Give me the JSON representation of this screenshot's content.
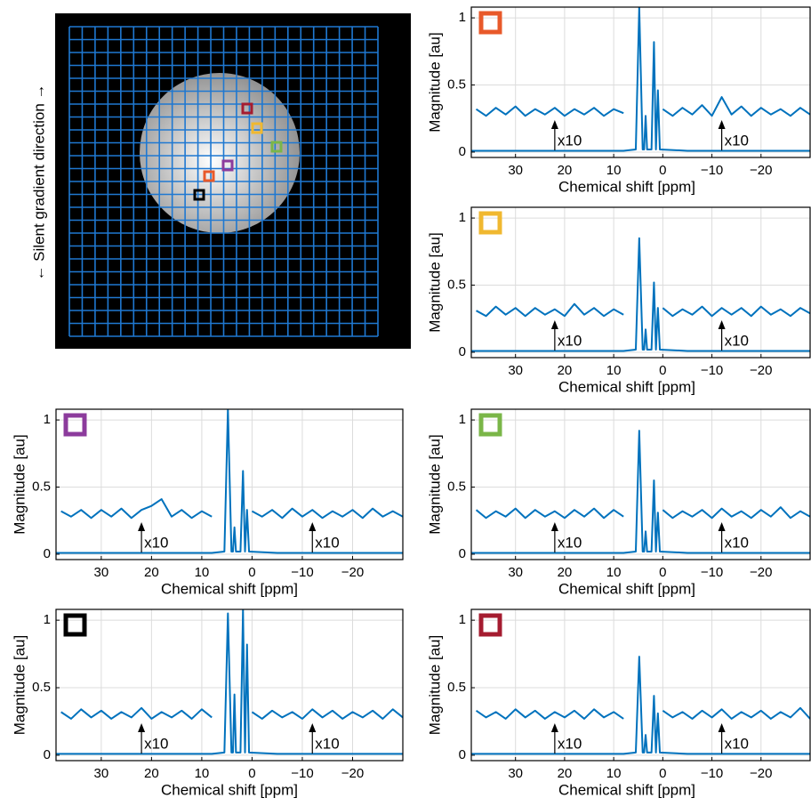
{
  "image": {
    "axis_label": "← Silent gradient direction →"
  },
  "chart_data": [
    {
      "type": "line",
      "xlabel": "Chemical shift [ppm]",
      "ylabel": "Magnitude [au]",
      "marker_color": "#e8592a",
      "xlim": [
        39,
        -30
      ],
      "ylim": [
        -0.04,
        1.08
      ],
      "xticks": [
        30,
        20,
        10,
        0,
        {
          "value": -10,
          "label": "−10"
        },
        {
          "value": -20,
          "label": "−20"
        }
      ],
      "yticks": [
        0,
        0.5,
        1
      ],
      "grid": true,
      "series": [
        {
          "color": "#0072bd",
          "x": [
            39,
            8,
            5.5,
            4.8,
            4.1,
            3.8,
            3.5,
            3.2,
            2.3,
            1.8,
            1.4,
            1.0,
            0.6,
            -5,
            -30
          ],
          "values": [
            0.01,
            0.01,
            0.02,
            1.08,
            0.02,
            0.02,
            0.27,
            0.02,
            0.02,
            0.82,
            0.02,
            0.46,
            0.02,
            0.01,
            0.01
          ]
        },
        {
          "color": "#0072bd",
          "x": [
            38,
            36,
            34,
            32,
            30,
            28,
            26,
            24,
            22,
            20,
            18,
            16,
            14,
            12,
            10,
            8,
            4,
            0,
            -2,
            -4,
            -6,
            -8,
            -10,
            -12,
            -14,
            -16,
            -18,
            -20,
            -22,
            -24,
            -26,
            -28,
            -30
          ],
          "values": [
            0.32,
            0.27,
            0.33,
            0.28,
            0.34,
            0.27,
            0.32,
            0.28,
            0.33,
            0.27,
            0.32,
            0.28,
            0.33,
            0.27,
            0.32,
            0.29,
            null,
            0.32,
            0.27,
            0.33,
            0.28,
            0.35,
            0.27,
            0.41,
            0.28,
            0.34,
            0.27,
            0.33,
            0.28,
            0.32,
            0.27,
            0.33,
            0.28
          ]
        }
      ],
      "annotations": [
        {
          "text": "x10",
          "x": 22
        },
        {
          "text": "x10",
          "x": -12
        }
      ]
    },
    {
      "type": "line",
      "xlabel": "Chemical shift [ppm]",
      "ylabel": "Magnitude [au]",
      "marker_color": "#f0b830",
      "xlim": [
        39,
        -30
      ],
      "ylim": [
        -0.04,
        1.08
      ],
      "xticks": [
        30,
        20,
        10,
        0,
        {
          "value": -10,
          "label": "−10"
        },
        {
          "value": -20,
          "label": "−20"
        }
      ],
      "yticks": [
        0,
        0.5,
        1
      ],
      "grid": true,
      "series": [
        {
          "color": "#0072bd",
          "x": [
            39,
            8,
            5.5,
            4.8,
            4.1,
            3.8,
            3.5,
            3.2,
            2.3,
            1.8,
            1.4,
            1.0,
            0.6,
            -5,
            -30
          ],
          "values": [
            0.01,
            0.01,
            0.02,
            0.85,
            0.02,
            0.02,
            0.17,
            0.02,
            0.02,
            0.52,
            0.02,
            0.33,
            0.02,
            0.01,
            0.01
          ]
        },
        {
          "color": "#0072bd",
          "x": [
            38,
            36,
            34,
            32,
            30,
            28,
            26,
            24,
            22,
            20,
            18,
            16,
            14,
            12,
            10,
            8,
            4,
            0,
            -2,
            -4,
            -6,
            -8,
            -10,
            -12,
            -14,
            -16,
            -18,
            -20,
            -22,
            -24,
            -26,
            -28,
            -30
          ],
          "values": [
            0.31,
            0.27,
            0.34,
            0.28,
            0.33,
            0.27,
            0.33,
            0.28,
            0.32,
            0.27,
            0.36,
            0.28,
            0.33,
            0.27,
            0.32,
            0.28,
            null,
            0.33,
            0.27,
            0.32,
            0.28,
            0.34,
            0.27,
            0.33,
            0.28,
            0.33,
            0.27,
            0.34,
            0.28,
            0.32,
            0.27,
            0.33,
            0.29
          ]
        }
      ],
      "annotations": [
        {
          "text": "x10",
          "x": 22
        },
        {
          "text": "x10",
          "x": -12
        }
      ]
    },
    {
      "type": "line",
      "xlabel": "Chemical shift [ppm]",
      "ylabel": "Magnitude [au]",
      "marker_color": "#8c3b9c",
      "xlim": [
        39,
        -30
      ],
      "ylim": [
        -0.04,
        1.08
      ],
      "xticks": [
        30,
        20,
        10,
        0,
        {
          "value": -10,
          "label": "−10"
        },
        {
          "value": -20,
          "label": "−20"
        }
      ],
      "yticks": [
        0,
        0.5,
        1
      ],
      "grid": true,
      "series": [
        {
          "color": "#0072bd",
          "x": [
            39,
            8,
            5.5,
            4.8,
            4.1,
            3.8,
            3.5,
            3.2,
            2.3,
            1.8,
            1.4,
            1.0,
            0.6,
            -5,
            -30
          ],
          "values": [
            0.01,
            0.01,
            0.02,
            1.08,
            0.02,
            0.02,
            0.2,
            0.02,
            0.02,
            0.62,
            0.02,
            0.33,
            0.02,
            0.01,
            0.01
          ]
        },
        {
          "color": "#0072bd",
          "x": [
            38,
            36,
            34,
            32,
            30,
            28,
            26,
            24,
            22,
            20,
            18,
            16,
            14,
            12,
            10,
            8,
            4,
            0,
            -2,
            -4,
            -6,
            -8,
            -10,
            -12,
            -14,
            -16,
            -18,
            -20,
            -22,
            -24,
            -26,
            -28,
            -30
          ],
          "values": [
            0.32,
            0.28,
            0.33,
            0.27,
            0.33,
            0.28,
            0.34,
            0.27,
            0.33,
            0.36,
            0.41,
            0.28,
            0.33,
            0.27,
            0.32,
            0.28,
            null,
            0.32,
            0.28,
            0.33,
            0.27,
            0.34,
            0.28,
            0.33,
            0.27,
            0.32,
            0.28,
            0.33,
            0.27,
            0.34,
            0.28,
            0.32,
            0.28
          ]
        }
      ],
      "annotations": [
        {
          "text": "x10",
          "x": 22
        },
        {
          "text": "x10",
          "x": -12
        }
      ]
    },
    {
      "type": "line",
      "xlabel": "Chemical shift [ppm]",
      "ylabel": "Magnitude [au]",
      "marker_color": "#7ab648",
      "xlim": [
        39,
        -30
      ],
      "ylim": [
        -0.04,
        1.08
      ],
      "xticks": [
        30,
        20,
        10,
        0,
        {
          "value": -10,
          "label": "−10"
        },
        {
          "value": -20,
          "label": "−20"
        }
      ],
      "yticks": [
        0,
        0.5,
        1
      ],
      "grid": true,
      "series": [
        {
          "color": "#0072bd",
          "x": [
            39,
            8,
            5.5,
            4.8,
            4.1,
            3.8,
            3.5,
            3.2,
            2.3,
            1.8,
            1.4,
            1.0,
            0.6,
            -5,
            -30
          ],
          "values": [
            0.01,
            0.01,
            0.02,
            0.92,
            0.02,
            0.02,
            0.17,
            0.02,
            0.02,
            0.55,
            0.02,
            0.31,
            0.02,
            0.01,
            0.01
          ]
        },
        {
          "color": "#0072bd",
          "x": [
            38,
            36,
            34,
            32,
            30,
            28,
            26,
            24,
            22,
            20,
            18,
            16,
            14,
            12,
            10,
            8,
            4,
            0,
            -2,
            -4,
            -6,
            -8,
            -10,
            -12,
            -14,
            -16,
            -18,
            -20,
            -22,
            -24,
            -26,
            -28,
            -30
          ],
          "values": [
            0.33,
            0.27,
            0.32,
            0.28,
            0.34,
            0.27,
            0.33,
            0.28,
            0.32,
            0.27,
            0.33,
            0.28,
            0.34,
            0.27,
            0.33,
            0.28,
            null,
            0.33,
            0.27,
            0.32,
            0.28,
            0.33,
            0.27,
            0.34,
            0.28,
            0.32,
            0.27,
            0.33,
            0.28,
            0.35,
            0.27,
            0.32,
            0.28
          ]
        }
      ],
      "annotations": [
        {
          "text": "x10",
          "x": 22
        },
        {
          "text": "x10",
          "x": -12
        }
      ]
    },
    {
      "type": "line",
      "xlabel": "Chemical shift [ppm]",
      "ylabel": "Magnitude [au]",
      "marker_color": "#000000",
      "xlim": [
        39,
        -30
      ],
      "ylim": [
        -0.04,
        1.08
      ],
      "xticks": [
        30,
        20,
        10,
        0,
        {
          "value": -10,
          "label": "−10"
        },
        {
          "value": -20,
          "label": "−20"
        }
      ],
      "yticks": [
        0,
        0.5,
        1
      ],
      "grid": true,
      "series": [
        {
          "color": "#0072bd",
          "x": [
            39,
            8,
            5.5,
            4.8,
            4.1,
            3.8,
            3.5,
            3.2,
            2.3,
            1.8,
            1.4,
            1.0,
            0.6,
            -5,
            -30
          ],
          "values": [
            0.01,
            0.01,
            0.02,
            1.05,
            0.02,
            0.02,
            0.45,
            0.02,
            0.02,
            1.08,
            0.02,
            0.82,
            0.02,
            0.01,
            0.01
          ]
        },
        {
          "color": "#0072bd",
          "x": [
            38,
            36,
            34,
            32,
            30,
            28,
            26,
            24,
            22,
            20,
            18,
            16,
            14,
            12,
            10,
            8,
            4,
            0,
            -2,
            -4,
            -6,
            -8,
            -10,
            -12,
            -14,
            -16,
            -18,
            -20,
            -22,
            -24,
            -26,
            -28,
            -30
          ],
          "values": [
            0.32,
            0.27,
            0.34,
            0.28,
            0.33,
            0.27,
            0.32,
            0.28,
            0.35,
            0.27,
            0.32,
            0.28,
            0.33,
            0.27,
            0.34,
            0.28,
            null,
            0.32,
            0.27,
            0.33,
            0.28,
            0.32,
            0.27,
            0.34,
            0.28,
            0.33,
            0.27,
            0.32,
            0.28,
            0.33,
            0.27,
            0.34,
            0.28
          ]
        }
      ],
      "annotations": [
        {
          "text": "x10",
          "x": 22
        },
        {
          "text": "x10",
          "x": -12
        }
      ]
    },
    {
      "type": "line",
      "xlabel": "Chemical shift [ppm]",
      "ylabel": "Magnitude [au]",
      "marker_color": "#a51c30",
      "xlim": [
        39,
        -30
      ],
      "ylim": [
        -0.04,
        1.08
      ],
      "xticks": [
        30,
        20,
        10,
        0,
        {
          "value": -10,
          "label": "−10"
        },
        {
          "value": -20,
          "label": "−20"
        }
      ],
      "yticks": [
        0,
        0.5,
        1
      ],
      "grid": true,
      "series": [
        {
          "color": "#0072bd",
          "x": [
            39,
            8,
            5.5,
            4.8,
            4.1,
            3.8,
            3.5,
            3.2,
            2.3,
            1.8,
            1.4,
            1.0,
            0.6,
            -5,
            -30
          ],
          "values": [
            0.01,
            0.01,
            0.02,
            0.73,
            0.02,
            0.02,
            0.15,
            0.02,
            0.02,
            0.44,
            0.02,
            0.31,
            0.02,
            0.01,
            0.01
          ]
        },
        {
          "color": "#0072bd",
          "x": [
            38,
            36,
            34,
            32,
            30,
            28,
            26,
            24,
            22,
            20,
            18,
            16,
            14,
            12,
            10,
            8,
            4,
            0,
            -2,
            -4,
            -6,
            -8,
            -10,
            -12,
            -14,
            -16,
            -18,
            -20,
            -22,
            -24,
            -26,
            -28,
            -30
          ],
          "values": [
            0.33,
            0.28,
            0.32,
            0.27,
            0.34,
            0.28,
            0.33,
            0.27,
            0.32,
            0.28,
            0.33,
            0.27,
            0.34,
            0.28,
            0.32,
            0.27,
            null,
            0.33,
            0.28,
            0.32,
            0.27,
            0.33,
            0.28,
            0.34,
            0.27,
            0.32,
            0.28,
            0.33,
            0.27,
            0.32,
            0.28,
            0.35,
            0.27
          ]
        }
      ],
      "annotations": [
        {
          "text": "x10",
          "x": 22
        },
        {
          "text": "x10",
          "x": -12
        }
      ]
    }
  ]
}
